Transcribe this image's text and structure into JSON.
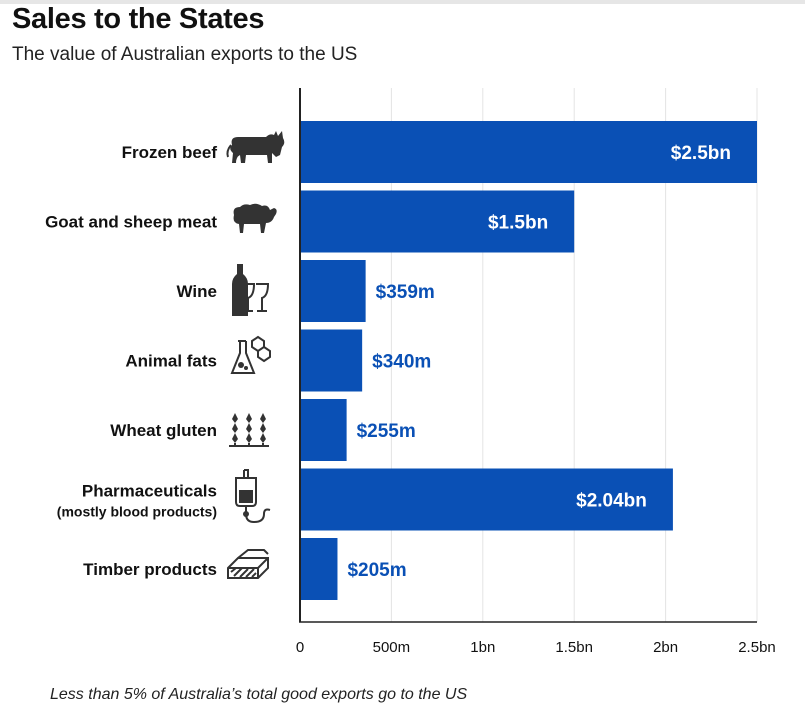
{
  "header": {
    "title": "Sales to the States",
    "subtitle": "The value of Australian exports to the US"
  },
  "footnote": "Less than 5% of Australia’s total good exports go to the US",
  "colors": {
    "bar": "#0a50b5",
    "value_inside": "#ffffff",
    "value_outside": "#0a50b5",
    "grid": "#e4e4e4",
    "axis": "#222222",
    "icon": "#333333"
  },
  "chart_data": {
    "type": "bar",
    "orientation": "horizontal",
    "categories": [
      {
        "label": "Frozen beef",
        "icon": "cow-icon"
      },
      {
        "label": "Goat and sheep meat",
        "icon": "sheep-icon"
      },
      {
        "label": "Wine",
        "icon": "wine-bottle-glasses-icon"
      },
      {
        "label": "Animal fats",
        "icon": "flask-molecule-icon"
      },
      {
        "label": "Wheat gluten",
        "icon": "wheat-icon"
      },
      {
        "label": "Pharmaceuticals",
        "sublabel": "(mostly blood products)",
        "icon": "blood-bag-icon"
      },
      {
        "label": "Timber products",
        "icon": "timber-stack-icon"
      }
    ],
    "values": [
      2500,
      1500,
      359,
      340,
      255,
      2040,
      205
    ],
    "value_labels": [
      "$2.5bn",
      "$1.5bn",
      "$359m",
      "$340m",
      "$255m",
      "$2.04bn",
      "$205m"
    ],
    "unit": "million AUD",
    "xlim": [
      0,
      2500
    ],
    "xticks": [
      0,
      500,
      1000,
      1500,
      2000,
      2500
    ],
    "xtick_labels": [
      "0",
      "500m",
      "1bn",
      "1.5bn",
      "2bn",
      "2.5bn"
    ],
    "grid": true,
    "legend": "none"
  }
}
